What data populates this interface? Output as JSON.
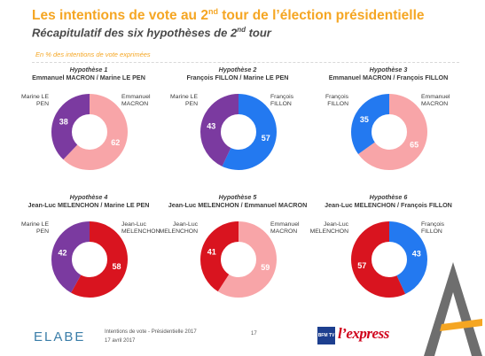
{
  "header": {
    "title_a": "Les intentions de vote au 2",
    "title_sup": "nd",
    "title_b": " tour de l’élection présidentielle",
    "subtitle_a": "Récapitulatif des six hypothèses de 2",
    "subtitle_sup": "nd",
    "subtitle_b": " tour",
    "note": "En % des intentions de vote exprimées"
  },
  "colors": {
    "macron": "#f8a5a8",
    "le_pen": "#7b3aa0",
    "fillon": "#2379f0",
    "melenchon": "#d9141f",
    "title": "#f5a623"
  },
  "chart_data": [
    {
      "type": "pie",
      "title": "Hypothèse 1",
      "subtitle": "Emmanuel MACRON / Marine LE PEN",
      "slices": [
        {
          "name": "Emmanuel MACRON",
          "label_left": "",
          "label_right": "Emmanuel\nMACRON",
          "value": 62,
          "color": "#f8a5a8"
        },
        {
          "name": "Marine LE PEN",
          "label_left": "Marine LE\nPEN",
          "label_right": "",
          "value": 38,
          "color": "#7b3aa0"
        }
      ]
    },
    {
      "type": "pie",
      "title": "Hypothèse 2",
      "subtitle": "François FILLON / Marine LE PEN",
      "slices": [
        {
          "name": "François FILLON",
          "value": 57,
          "color": "#2379f0"
        },
        {
          "name": "Marine LE PEN",
          "value": 43,
          "color": "#7b3aa0"
        }
      ]
    },
    {
      "type": "pie",
      "title": "Hypothèse 3",
      "subtitle": "Emmanuel MACRON / François FILLON",
      "slices": [
        {
          "name": "Emmanuel MACRON",
          "value": 65,
          "color": "#f8a5a8"
        },
        {
          "name": "François FILLON",
          "value": 35,
          "color": "#2379f0"
        }
      ]
    },
    {
      "type": "pie",
      "title": "Hypothèse 4",
      "subtitle": "Jean-Luc MELENCHON / Marine LE PEN",
      "slices": [
        {
          "name": "Jean-Luc MELENCHON",
          "value": 58,
          "color": "#d9141f"
        },
        {
          "name": "Marine LE PEN",
          "value": 42,
          "color": "#7b3aa0"
        }
      ]
    },
    {
      "type": "pie",
      "title": "Hypothèse 5",
      "subtitle": "Jean-Luc MELENCHON / Emmanuel MACRON",
      "slices": [
        {
          "name": "Emmanuel MACRON",
          "value": 59,
          "color": "#f8a5a8"
        },
        {
          "name": "Jean-Luc MELENCHON",
          "value": 41,
          "color": "#d9141f"
        }
      ]
    },
    {
      "type": "pie",
      "title": "Hypothèse 6",
      "subtitle": "Jean-Luc MELENCHON / François FILLON",
      "slices": [
        {
          "name": "François FILLON",
          "value": 43,
          "color": "#2379f0"
        },
        {
          "name": "Jean-Luc MELENCHON",
          "value": 57,
          "color": "#d9141f"
        }
      ]
    }
  ],
  "panels": [
    {
      "left_label": "Marine LE\nPEN",
      "right_label": "Emmanuel\nMACRON"
    },
    {
      "left_label": "Marine LE\nPEN",
      "right_label": "François\nFILLON"
    },
    {
      "left_label": "François\nFILLON",
      "right_label": "Emmanuel\nMACRON"
    },
    {
      "left_label": "Marine LE\nPEN",
      "right_label": "Jean-Luc\nMELENCHON"
    },
    {
      "left_label": "Jean-Luc\nMELENCHON",
      "right_label": "Emmanuel\nMACRON"
    },
    {
      "left_label": "Jean-Luc\nMELENCHON",
      "right_label": "François\nFILLON"
    }
  ],
  "footer": {
    "brand": "ELABE",
    "doc_title": "Intentions de vote - Présidentielle 2017",
    "date": "17 avril 2017",
    "page": "17",
    "partner_tv": "BFM TV",
    "partner_press": "l’express"
  }
}
